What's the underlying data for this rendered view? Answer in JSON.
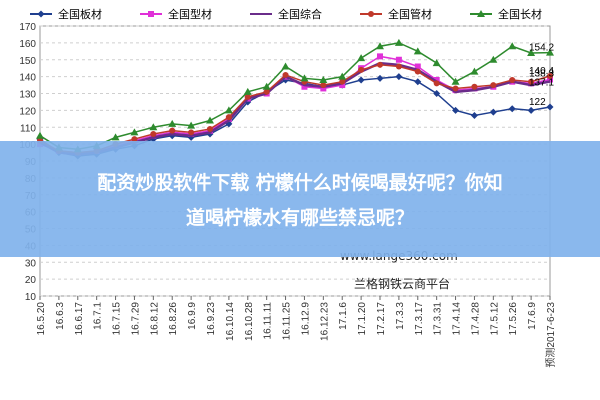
{
  "banner": {
    "line1": "配资炒股软件下载 柠檬什么时候喝最好呢？你知",
    "line2": "道喝柠檬水有哪些禁忌呢？"
  },
  "watermark": {
    "url": "www.lange360.com",
    "brand": "兰格钢铁云商平台"
  },
  "chart_data": {
    "type": "line",
    "title": "",
    "xlabel": "",
    "ylabel": "",
    "ylim": [
      10,
      170
    ],
    "yticks": [
      10,
      20,
      30,
      40,
      50,
      60,
      70,
      80,
      90,
      100,
      110,
      120,
      130,
      140,
      150,
      160,
      170
    ],
    "grid": true,
    "legend_position": "top",
    "categories": [
      "16.5.20",
      "16.6.3",
      "16.6.17",
      "16.7.1",
      "16.7.15",
      "16.7.29",
      "16.8.12",
      "16.8.26",
      "16.9.9",
      "16.9.23",
      "16.10.14",
      "16.10.28",
      "16.11.11",
      "16.11.25",
      "16.12.9",
      "16.12.23",
      "17.1.6",
      "17.1.20",
      "17.2.17",
      "17.3.3",
      "17.3.17",
      "17.3.31",
      "17.4.14",
      "17.4.28",
      "17.5.12",
      "17.5.26",
      "17.6.9",
      "预测2017-6-23"
    ],
    "series": [
      {
        "name": "全国板材",
        "color": "#1f3f8f",
        "marker": "diamond",
        "values": [
          103,
          95,
          93,
          94,
          97,
          99,
          103,
          105,
          104,
          106,
          112,
          125,
          131,
          138,
          136,
          134,
          135,
          138,
          139,
          140,
          137,
          130,
          120,
          117,
          119,
          121,
          120,
          122
        ]
      },
      {
        "name": "全国型材",
        "color": "#e030d8",
        "marker": "square",
        "values": [
          100,
          96,
          95,
          96,
          99,
          102,
          105,
          107,
          106,
          108,
          115,
          127,
          130,
          140,
          134,
          133,
          135,
          145,
          152,
          150,
          146,
          138,
          132,
          133,
          134,
          137,
          136,
          138.3
        ]
      },
      {
        "name": "全国综合",
        "color": "#6a2c8a",
        "marker": "none",
        "values": [
          101,
          95,
          94,
          95,
          98,
          101,
          104,
          106,
          105,
          107,
          114,
          127,
          130,
          140,
          135,
          134,
          136,
          143,
          148,
          147,
          144,
          137,
          131,
          132,
          134,
          137,
          135,
          137.1
        ]
      },
      {
        "name": "全国管材",
        "color": "#c0392b",
        "marker": "circle",
        "values": [
          102,
          96,
          95,
          96,
          100,
          103,
          106,
          108,
          107,
          109,
          116,
          128,
          131,
          141,
          137,
          135,
          137,
          144,
          147,
          146,
          143,
          136,
          133,
          134,
          135,
          138,
          137,
          140.4
        ]
      },
      {
        "name": "全国长材",
        "color": "#2e8b2e",
        "marker": "triangle",
        "values": [
          105,
          98,
          97,
          99,
          104,
          107,
          110,
          112,
          111,
          114,
          120,
          131,
          134,
          146,
          139,
          138,
          140,
          151,
          158,
          160,
          155,
          148,
          137,
          143,
          150,
          158,
          154,
          154.2
        ]
      }
    ],
    "annotations": [
      "154.2",
      "140.4",
      "138.3",
      "137.1",
      "122"
    ]
  }
}
